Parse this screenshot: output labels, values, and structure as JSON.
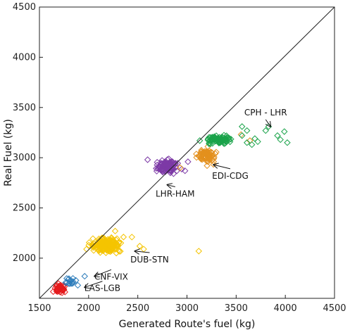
{
  "chart_data": {
    "type": "scatter",
    "xlabel": "Generated Route's fuel (kg)",
    "ylabel": "Real Fuel (kg)",
    "xlim": [
      1500,
      4500
    ],
    "ylim": [
      1600,
      4500
    ],
    "xticks": [
      1500,
      2000,
      2500,
      3000,
      3500,
      4000,
      4500
    ],
    "yticks": [
      2000,
      2500,
      3000,
      3500,
      4000,
      4500
    ],
    "marker": "diamond-open",
    "grid": false,
    "reference_line": {
      "from": [
        1500,
        1500
      ],
      "to": [
        4500,
        4500
      ]
    },
    "series": [
      {
        "color": "#e41a1c",
        "clusters": [
          {
            "cx": 1715,
            "cy": 1690,
            "sx": 55,
            "sy": 40,
            "n": 45
          }
        ]
      },
      {
        "color": "#2b7bba",
        "clusters": [
          {
            "cx": 1800,
            "cy": 1760,
            "sx": 60,
            "sy": 35,
            "n": 14
          }
        ],
        "points": [
          [
            1960,
            1820
          ],
          [
            1890,
            1730
          ]
        ]
      },
      {
        "color": "#f5c400",
        "clusters": [
          {
            "cx": 2190,
            "cy": 2130,
            "sx": 120,
            "sy": 55,
            "n": 230
          }
        ],
        "points": [
          [
            2440,
            2210
          ],
          [
            2520,
            2120
          ],
          [
            2560,
            2090
          ],
          [
            3120,
            2070
          ],
          [
            2270,
            2270
          ]
        ]
      },
      {
        "color": "#7d3aa6",
        "clusters": [
          {
            "cx": 2800,
            "cy": 2910,
            "sx": 85,
            "sy": 50,
            "n": 120
          }
        ],
        "points": [
          [
            2980,
            2870
          ],
          [
            2600,
            2980
          ],
          [
            3010,
            2960
          ]
        ]
      },
      {
        "color": "#e3901d",
        "clusters": [
          {
            "cx": 3200,
            "cy": 3020,
            "sx": 75,
            "sy": 55,
            "n": 70
          }
        ],
        "points": [
          [
            2930,
            2900
          ],
          [
            3550,
            3230
          ],
          [
            3640,
            3170
          ]
        ]
      },
      {
        "color": "#1aa34a",
        "clusters": [
          {
            "cx": 3330,
            "cy": 3180,
            "sx": 95,
            "sy": 30,
            "n": 90
          }
        ],
        "points": [
          [
            3800,
            3270
          ],
          [
            3830,
            3310
          ],
          [
            3920,
            3220
          ],
          [
            3950,
            3180
          ],
          [
            3990,
            3260
          ],
          [
            4020,
            3150
          ],
          [
            3720,
            3160
          ],
          [
            3690,
            3190
          ],
          [
            3560,
            3310
          ],
          [
            3560,
            3220
          ],
          [
            3610,
            3270
          ],
          [
            3610,
            3150
          ],
          [
            3660,
            3130
          ],
          [
            3130,
            3170
          ]
        ]
      }
    ],
    "annotations": [
      {
        "label": "CPH - LHR",
        "text_at": [
          3800,
          3450
        ],
        "arrow_to": [
          3850,
          3310
        ]
      },
      {
        "label": "EDI-CDG",
        "text_at": [
          3440,
          2820
        ],
        "arrow_to": [
          3270,
          2930
        ]
      },
      {
        "label": "LHR-HAM",
        "text_at": [
          2880,
          2640
        ],
        "arrow_to": [
          2800,
          2730
        ]
      },
      {
        "label": "DUB-STN",
        "text_at": [
          2620,
          1985
        ],
        "arrow_to": [
          2470,
          2070
        ]
      },
      {
        "label": "CNF-VIX",
        "text_at": [
          2230,
          1815
        ],
        "arrow_to": [
          2060,
          1820
        ]
      },
      {
        "label": "LAS-LGB",
        "text_at": [
          2140,
          1700
        ],
        "arrow_to": [
          1960,
          1710
        ]
      }
    ]
  }
}
